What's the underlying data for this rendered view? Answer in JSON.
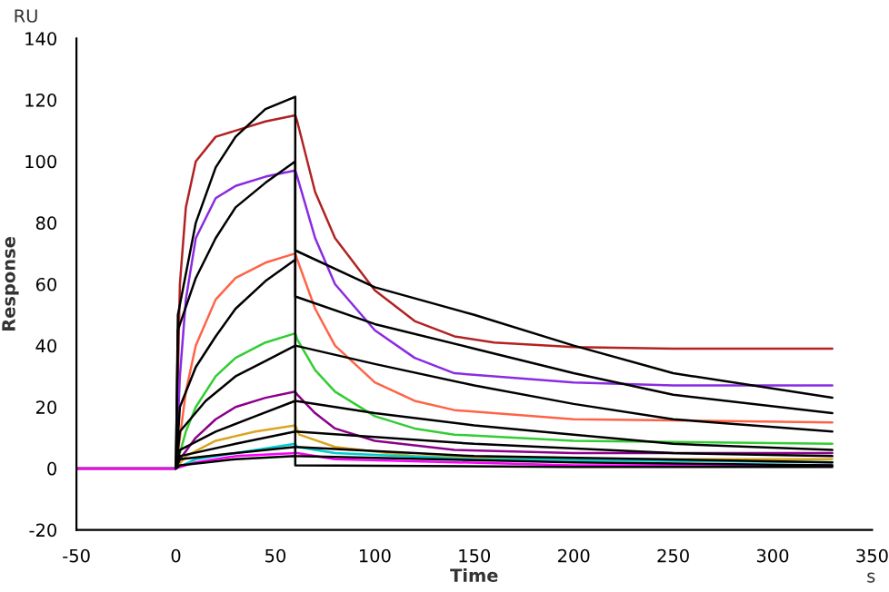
{
  "chart_data": {
    "type": "line",
    "xlabel": "Time",
    "ylabel": "Response",
    "annotations": [
      "RU",
      "s"
    ],
    "xlim": [
      -50,
      350
    ],
    "ylim": [
      -20,
      140
    ],
    "xticks": [
      -50,
      0,
      50,
      100,
      150,
      200,
      250,
      300,
      350
    ],
    "yticks": [
      -20,
      0,
      20,
      40,
      60,
      80,
      100,
      120,
      140
    ],
    "grid": false,
    "legend": false,
    "marker": "none",
    "line_style": "solid",
    "series": [
      {
        "color": "#b22222",
        "x": [
          -50,
          0,
          2,
          5,
          10,
          20,
          30,
          45,
          60,
          61,
          70,
          80,
          100,
          120,
          140,
          160,
          200,
          250,
          330
        ],
        "values": [
          0,
          0,
          60,
          85,
          100,
          108,
          110,
          113,
          115,
          113,
          90,
          75,
          58,
          48,
          43,
          41,
          39.5,
          39,
          39
        ]
      },
      {
        "color": "#8a2be2",
        "x": [
          -50,
          0,
          2,
          5,
          10,
          20,
          30,
          45,
          60,
          61,
          70,
          80,
          100,
          120,
          140,
          200,
          250,
          330
        ],
        "values": [
          0,
          0,
          30,
          55,
          75,
          88,
          92,
          95,
          97,
          95,
          75,
          60,
          45,
          36,
          31,
          28,
          27,
          27
        ]
      },
      {
        "color": "#ff6347",
        "x": [
          -50,
          0,
          2,
          5,
          10,
          20,
          30,
          45,
          60,
          61,
          70,
          80,
          100,
          120,
          140,
          200,
          330
        ],
        "values": [
          0,
          0,
          10,
          25,
          40,
          55,
          62,
          67,
          70,
          68,
          52,
          40,
          28,
          22,
          19,
          16,
          15
        ]
      },
      {
        "color": "#32cd32",
        "x": [
          -50,
          0,
          2,
          5,
          10,
          20,
          30,
          45,
          60,
          61,
          70,
          80,
          100,
          120,
          140,
          200,
          330
        ],
        "values": [
          0,
          0,
          5,
          12,
          20,
          30,
          36,
          41,
          44,
          42,
          32,
          25,
          17,
          13,
          11,
          9,
          8
        ]
      },
      {
        "color": "#8b008b",
        "x": [
          -50,
          0,
          2,
          10,
          20,
          30,
          45,
          60,
          61,
          70,
          80,
          100,
          140,
          200,
          330
        ],
        "values": [
          0,
          0,
          3,
          10,
          16,
          20,
          23,
          25,
          24,
          18,
          13,
          9,
          6,
          5,
          5
        ]
      },
      {
        "color": "#daa520",
        "x": [
          -50,
          0,
          5,
          20,
          40,
          60,
          62,
          80,
          120,
          200,
          330
        ],
        "values": [
          0,
          0,
          4,
          9,
          12,
          14,
          11,
          7,
          4,
          3,
          3
        ]
      },
      {
        "color": "#00ced1",
        "x": [
          -50,
          0,
          10,
          30,
          60,
          61,
          80,
          150,
          330
        ],
        "values": [
          0,
          0,
          3,
          5,
          8,
          7,
          5,
          3,
          2
        ]
      },
      {
        "color": "#ff00ff",
        "x": [
          -50,
          0,
          10,
          30,
          60,
          61,
          80,
          200,
          330
        ],
        "values": [
          0,
          0,
          2,
          4,
          5,
          5,
          3,
          1,
          1
        ]
      },
      {
        "color": "#000000",
        "x": [
          0,
          1,
          10,
          20,
          30,
          45,
          60,
          60,
          100,
          150,
          200,
          250,
          330
        ],
        "values": [
          0,
          50,
          80,
          98,
          108,
          117,
          121,
          71,
          59,
          50,
          40,
          31,
          23
        ]
      },
      {
        "color": "#000000",
        "x": [
          0,
          1,
          10,
          20,
          30,
          45,
          60,
          60,
          100,
          150,
          200,
          250,
          330
        ],
        "values": [
          0,
          45,
          62,
          75,
          85,
          93,
          100,
          56,
          47,
          39,
          31,
          24,
          18
        ]
      },
      {
        "color": "#000000",
        "x": [
          0,
          2,
          10,
          20,
          30,
          45,
          60,
          60,
          100,
          150,
          200,
          250,
          330
        ],
        "values": [
          0,
          20,
          33,
          43,
          52,
          61,
          68,
          40,
          34,
          27,
          21,
          16,
          12
        ]
      },
      {
        "color": "#000000",
        "x": [
          0,
          2,
          15,
          30,
          45,
          60,
          60,
          100,
          150,
          200,
          250,
          330
        ],
        "values": [
          0,
          12,
          22,
          30,
          35,
          40,
          22,
          18,
          14,
          11,
          8,
          6
        ]
      },
      {
        "color": "#000000",
        "x": [
          0,
          2,
          20,
          40,
          60,
          60,
          150,
          250,
          330
        ],
        "values": [
          0,
          6,
          12,
          17,
          22,
          12,
          8,
          5,
          4
        ]
      },
      {
        "color": "#000000",
        "x": [
          0,
          2,
          30,
          60,
          60,
          150,
          330
        ],
        "values": [
          0,
          4,
          8,
          12,
          7,
          4,
          2
        ]
      },
      {
        "color": "#000000",
        "x": [
          0,
          2,
          30,
          60,
          60,
          200,
          330
        ],
        "values": [
          0,
          3,
          5,
          7,
          4,
          2,
          1
        ]
      },
      {
        "color": "#000000",
        "x": [
          0,
          2,
          30,
          60,
          60,
          200,
          330
        ],
        "values": [
          0,
          1,
          3,
          4,
          1,
          0.5,
          0.5
        ]
      }
    ]
  }
}
